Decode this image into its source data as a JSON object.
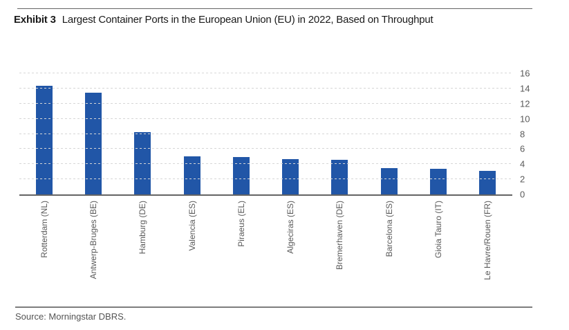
{
  "header": {
    "exhibit_label": "Exhibit 3",
    "title": "Largest Container Ports in the European Union (EU) in 2022, Based on Throughput"
  },
  "footer": {
    "source": "Source: Morningstar DBRS."
  },
  "colors": {
    "bar": "#2156a7",
    "gridline": "#d6d6d6",
    "axis_line": "#646464",
    "tick_text": "#595959",
    "title_text": "#1a1a1a"
  },
  "chart_data": {
    "type": "bar",
    "title": "Largest Container Ports in the European Union (EU) in 2022, Based on Throughput",
    "categories": [
      "Rotterdam (NL)",
      "Antwerp-Bruges (BE)",
      "Hamburg (DE)",
      "Valencia (ES)",
      "Piraeus (EL)",
      "Algeciras (ES)",
      "Bremerhaven (DE)",
      "Barcelona (ES)",
      "Gioia Tauro (IT)",
      "Le Havre/Rouen (FR)"
    ],
    "values": [
      14.4,
      13.4,
      8.2,
      5.0,
      4.9,
      4.7,
      4.6,
      3.5,
      3.4,
      3.1
    ],
    "xlabel": "",
    "ylabel": "",
    "ylim": [
      0,
      16
    ],
    "yticks": [
      0,
      2,
      4,
      6,
      8,
      10,
      12,
      14,
      16
    ],
    "grid": "horizontal-dashed",
    "yaxis_position": "right",
    "legend": "none",
    "bar_color": "#2156a7"
  }
}
